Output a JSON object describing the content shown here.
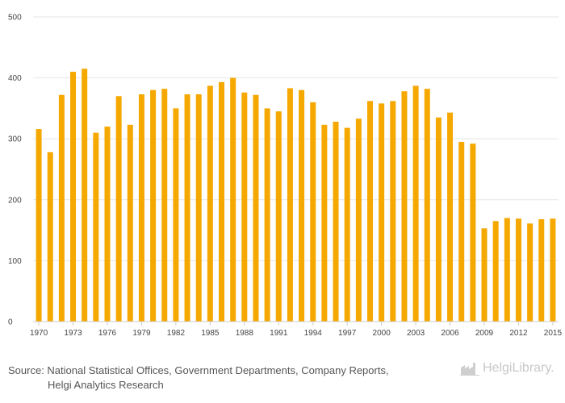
{
  "chart_data": {
    "type": "bar",
    "title": "",
    "xlabel": "",
    "ylabel": "",
    "ylim": [
      0,
      500
    ],
    "yticks": [
      0,
      100,
      200,
      300,
      400,
      500
    ],
    "xtick_labels": [
      "1970",
      "1973",
      "1976",
      "1979",
      "1982",
      "1985",
      "1988",
      "1991",
      "1994",
      "1997",
      "2000",
      "2003",
      "2006",
      "2009",
      "2012",
      "2015"
    ],
    "categories": [
      "1970",
      "1971",
      "1972",
      "1973",
      "1974",
      "1975",
      "1976",
      "1977",
      "1978",
      "1979",
      "1980",
      "1981",
      "1982",
      "1983",
      "1984",
      "1985",
      "1986",
      "1987",
      "1988",
      "1989",
      "1990",
      "1991",
      "1992",
      "1993",
      "1994",
      "1995",
      "1996",
      "1997",
      "1998",
      "1999",
      "2000",
      "2001",
      "2002",
      "2003",
      "2004",
      "2005",
      "2006",
      "2007",
      "2008",
      "2009",
      "2010",
      "2011",
      "2012",
      "2013",
      "2014",
      "2015"
    ],
    "values": [
      316,
      278,
      372,
      410,
      415,
      310,
      320,
      370,
      323,
      373,
      380,
      382,
      350,
      373,
      373,
      387,
      393,
      400,
      376,
      372,
      350,
      345,
      383,
      380,
      360,
      323,
      328,
      318,
      333,
      362,
      358,
      362,
      378,
      387,
      382,
      335,
      343,
      295,
      292,
      153,
      165,
      170,
      169,
      161,
      168,
      169
    ],
    "bar_color": "#f5a800"
  },
  "footer": {
    "source_line1": "Source: National Statistical Offices, Government Departments, Company Reports,",
    "source_line2": "Helgi Analytics Research",
    "logo_text": "HelgiLibrary."
  }
}
